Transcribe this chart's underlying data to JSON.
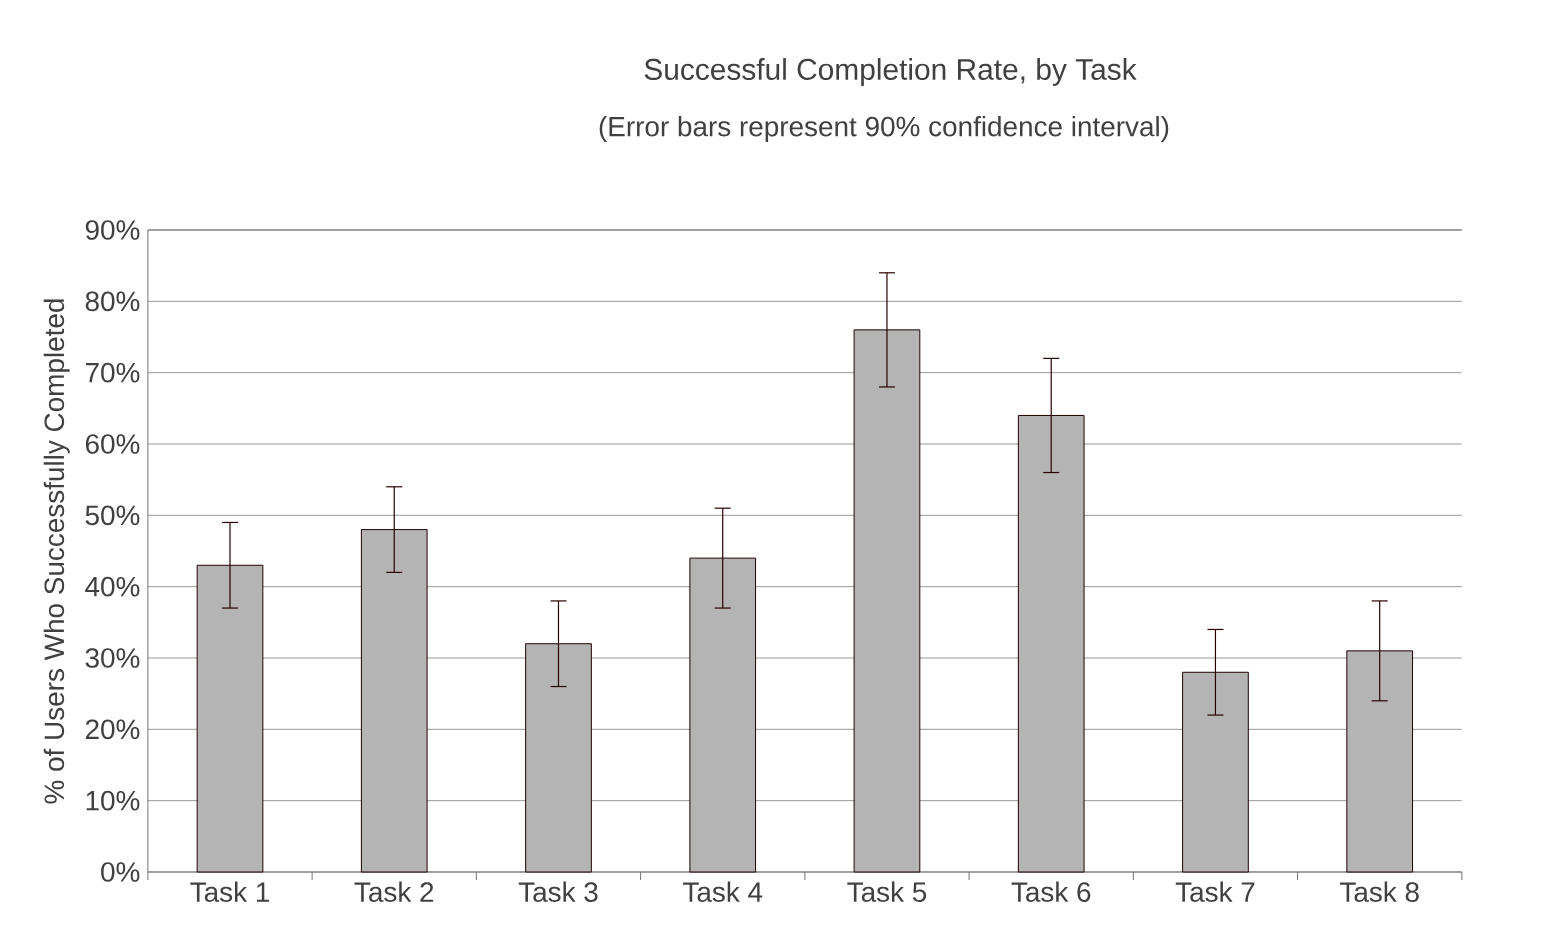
{
  "chart_data": {
    "type": "bar",
    "title": "Successful Completion Rate, by Task",
    "subtitle": "(Error bars represent 90% confidence interval)",
    "ylabel": "% of Users Who Successfully Completed",
    "categories": [
      "Task 1",
      "Task 2",
      "Task 3",
      "Task 4",
      "Task 5",
      "Task 6",
      "Task 7",
      "Task 8"
    ],
    "values": [
      43,
      48,
      32,
      44,
      76,
      64,
      28,
      31
    ],
    "errors": [
      [
        37,
        49
      ],
      [
        42,
        54
      ],
      [
        26,
        38
      ],
      [
        37,
        51
      ],
      [
        68,
        84
      ],
      [
        56,
        72
      ],
      [
        22,
        34
      ],
      [
        24,
        38
      ]
    ],
    "color": "#b4b4b4",
    "ylim": [
      0,
      90
    ],
    "yticks": [
      {
        "value": 0,
        "label": "0%"
      },
      {
        "value": 10,
        "label": "10%"
      },
      {
        "value": 20,
        "label": "20%"
      },
      {
        "value": 30,
        "label": "30%"
      },
      {
        "value": 40,
        "label": "40%"
      },
      {
        "value": 50,
        "label": "50%"
      },
      {
        "value": 60,
        "label": "60%"
      },
      {
        "value": 70,
        "label": "70%"
      },
      {
        "value": 80,
        "label": "80%"
      },
      {
        "value": 90,
        "label": "90%"
      }
    ],
    "grid": "y"
  }
}
